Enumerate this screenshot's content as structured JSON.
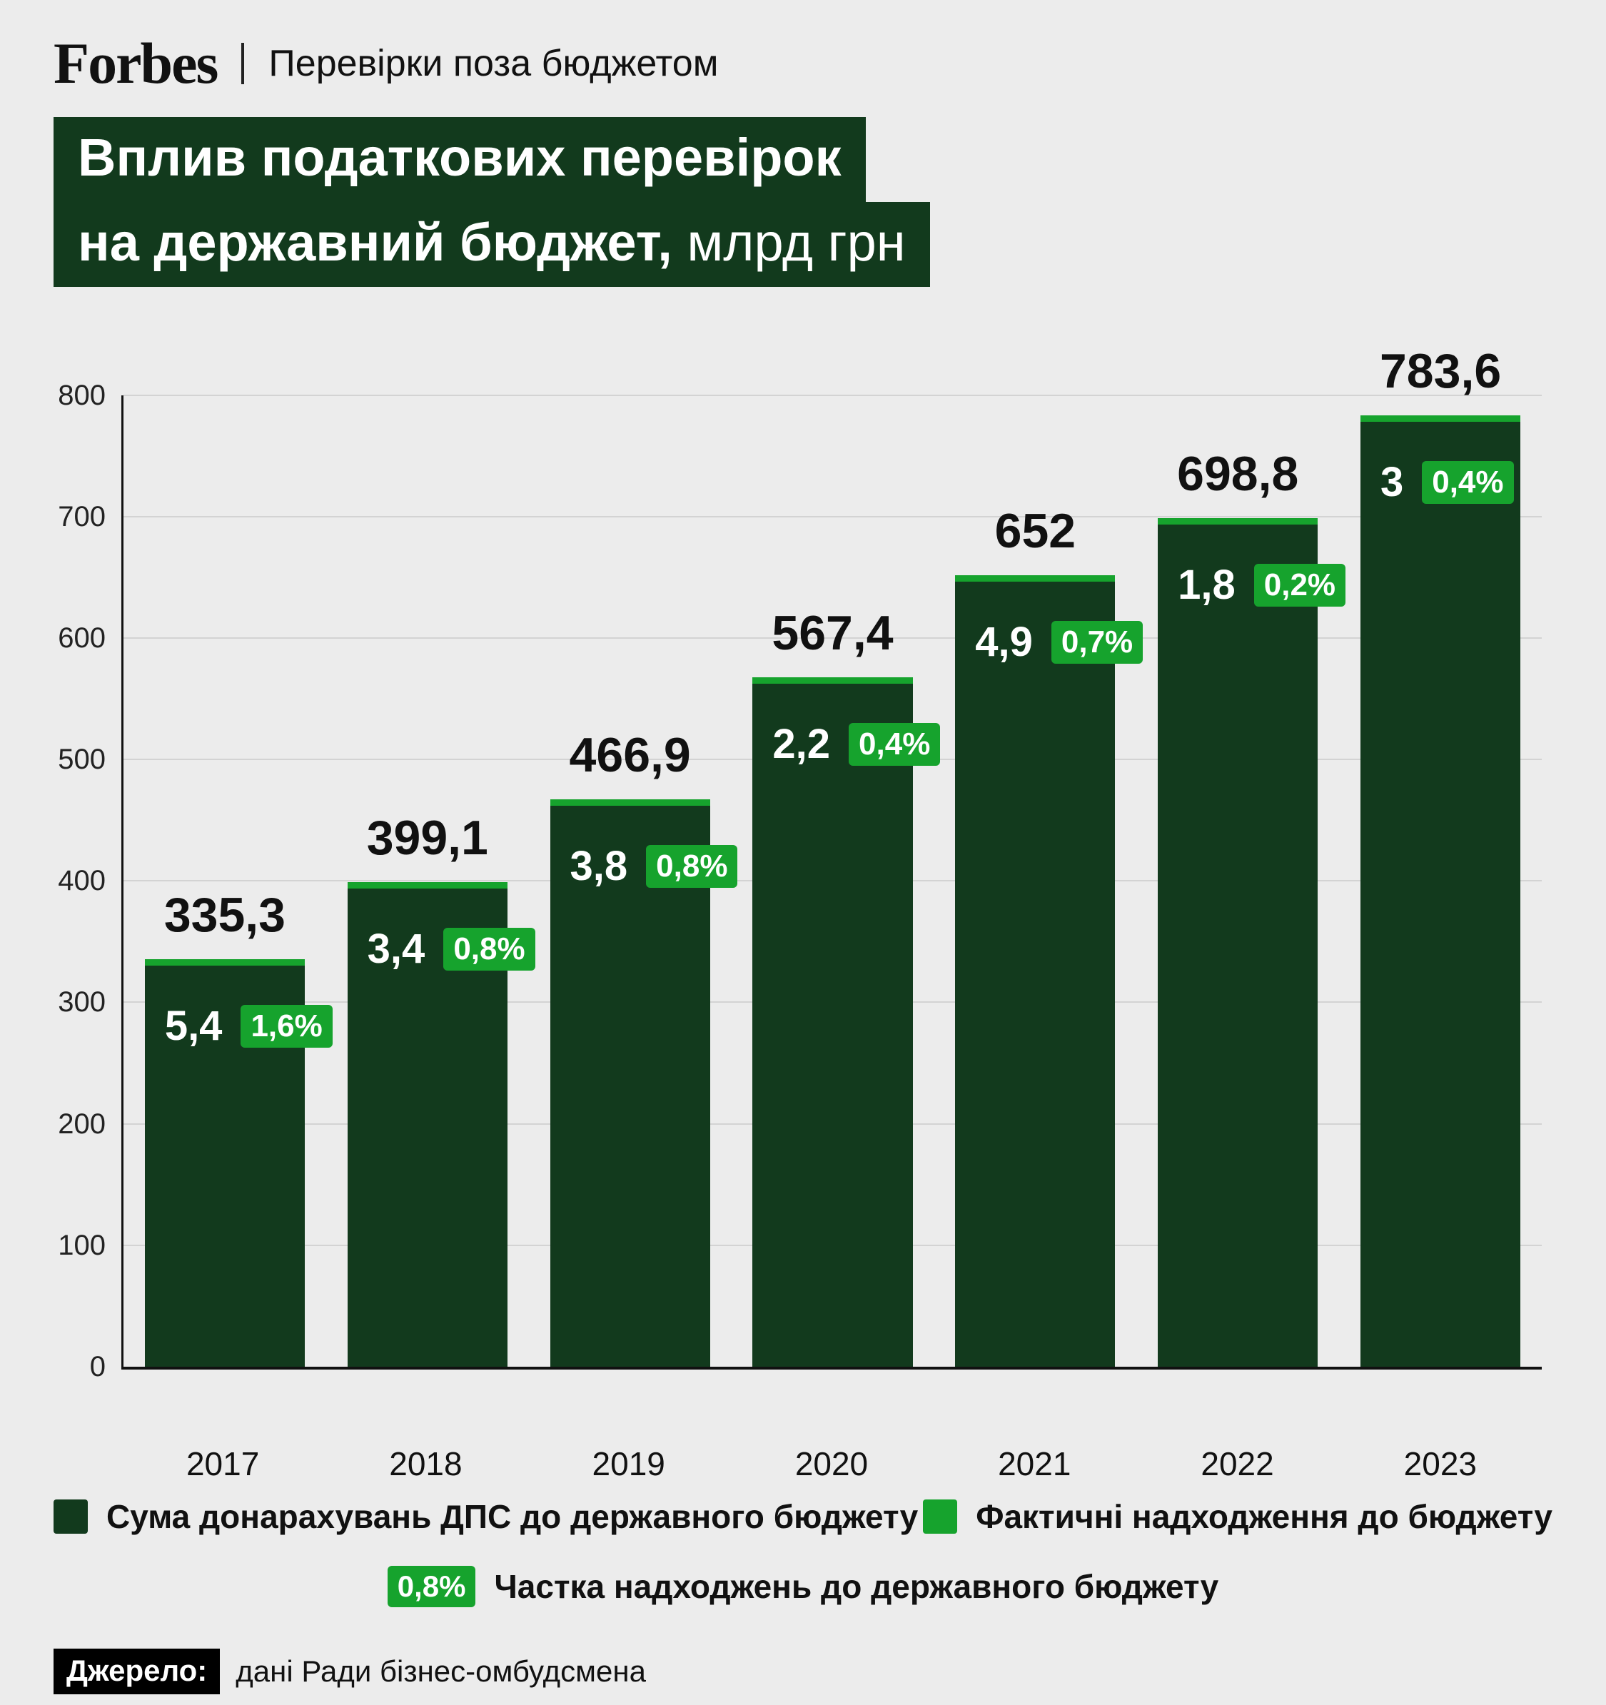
{
  "header": {
    "brand": "Forbes",
    "tagline": "Перевірки поза бюджетом"
  },
  "title": {
    "line1": "Вплив податкових перевірок",
    "line2_bold": "на державний бюджет,",
    "line2_regular": " млрд грн"
  },
  "chart_data": {
    "type": "bar",
    "title": "Вплив податкових перевірок на державний бюджет, млрд грн",
    "categories": [
      "2017",
      "2018",
      "2019",
      "2020",
      "2021",
      "2022",
      "2023"
    ],
    "series": [
      {
        "name": "Сума донарахувань ДПС до державного бюджету",
        "values": [
          335.3,
          399.1,
          466.9,
          567.4,
          652,
          698.8,
          783.6
        ]
      },
      {
        "name": "Фактичні надходження до бюджету",
        "values": [
          5.4,
          3.4,
          3.8,
          2.2,
          4.9,
          1.8,
          3
        ]
      },
      {
        "name": "Частка надходжень до державного бюджету",
        "values_percent": [
          1.6,
          0.8,
          0.8,
          0.4,
          0.7,
          0.2,
          0.4
        ]
      }
    ],
    "bar_total_labels": [
      "335,3",
      "399,1",
      "466,9",
      "567,4",
      "652",
      "698,8",
      "783,6"
    ],
    "bar_inner_labels": [
      "5,4",
      "3,4",
      "3,8",
      "2,2",
      "4,9",
      "1,8",
      "3"
    ],
    "bar_badge_labels": [
      "1,6%",
      "0,8%",
      "0,8%",
      "0,4%",
      "0,7%",
      "0,2%",
      "0,4%"
    ],
    "y_ticks": [
      800,
      700,
      600,
      500,
      400,
      300,
      200,
      100,
      0
    ],
    "ylim": [
      0,
      800
    ],
    "grid": true,
    "legend_position": "bottom"
  },
  "legend": {
    "items": [
      {
        "label": "Сума донарахувань ДПС до державного бюджету"
      },
      {
        "label": "Фактичні надходження до бюджету"
      }
    ],
    "badge_item": {
      "badge": "0,8%",
      "label": "Частка надходжень до державного бюджету"
    }
  },
  "source": {
    "label": "Джерело:",
    "text": "дані Ради бізнес-омбудсмена"
  },
  "colors": {
    "dark_green": "#123a1d",
    "bright_green": "#16a32d",
    "background": "#ececec",
    "text": "#111111"
  }
}
